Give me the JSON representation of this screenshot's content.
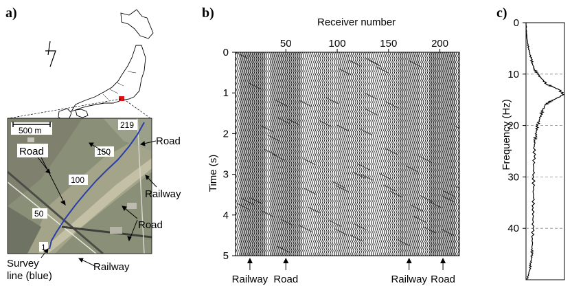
{
  "panels": {
    "a": {
      "label": "a)",
      "scale_bar": "500 m",
      "road_labels": [
        "Road",
        "Road",
        "Road"
      ],
      "railway_labels": [
        "Railway",
        "Railway"
      ],
      "survey_line": [
        "Survey",
        "line (blue)"
      ],
      "receiver_markers": [
        "1",
        "50",
        "100",
        "150",
        "219"
      ],
      "survey_line_color": "#2a3ea8",
      "highlight_color": "#e01010"
    },
    "b": {
      "label": "b)",
      "xlabel": "Receiver number",
      "ylabel": "Time (s)",
      "bottom_annotations": [
        "Railway",
        "Road",
        "Railway",
        "Road"
      ]
    },
    "c": {
      "label": "c)",
      "ylabel": "Frequency (Hz)"
    }
  },
  "chart_data": [
    {
      "type": "heatmap",
      "panel": "b",
      "xlabel": "Receiver number",
      "ylabel": "Time (s)",
      "x_ticks": [
        50,
        100,
        150,
        200
      ],
      "y_ticks": [
        0,
        1,
        2,
        3,
        4,
        5
      ],
      "xlim": [
        1,
        219
      ],
      "ylim": [
        0,
        5
      ],
      "y_inverted": true,
      "annotations": [
        {
          "text": "Railway",
          "receiver": 15
        },
        {
          "text": "Road",
          "receiver": 50
        },
        {
          "text": "Railway",
          "receiver": 170
        },
        {
          "text": "Road",
          "receiver": 203
        }
      ]
    },
    {
      "type": "line",
      "panel": "c",
      "ylabel": "Frequency (Hz)",
      "y_ticks": [
        0,
        10,
        20,
        30,
        40
      ],
      "ylim": [
        0,
        50
      ],
      "y_inverted": true,
      "gridlines": [
        10,
        20,
        30,
        40
      ],
      "grid_style": "dashed",
      "x": [
        0.002,
        0.01,
        0.04,
        0.07,
        0.1,
        0.13,
        0.17,
        0.22,
        0.3,
        0.42,
        0.55,
        0.7,
        0.85,
        0.98,
        0.72,
        0.58,
        0.5,
        0.44,
        0.38,
        0.34,
        0.3,
        0.27,
        0.25,
        0.23,
        0.22,
        0.21,
        0.2,
        0.2,
        0.19,
        0.19,
        0.19,
        0.18,
        0.18,
        0.17,
        0.16,
        0.15,
        0.14,
        0.12,
        0.1,
        0.06,
        0.03
      ],
      "y": [
        0,
        2,
        4,
        5,
        6,
        7,
        8,
        9,
        10,
        11,
        12,
        12.5,
        13,
        14,
        15,
        15.5,
        16,
        17,
        18,
        19,
        20,
        21,
        22,
        23,
        24,
        26,
        28,
        30,
        32,
        34,
        36,
        38,
        40,
        42,
        44,
        45,
        46,
        47,
        48,
        49,
        50
      ]
    }
  ]
}
